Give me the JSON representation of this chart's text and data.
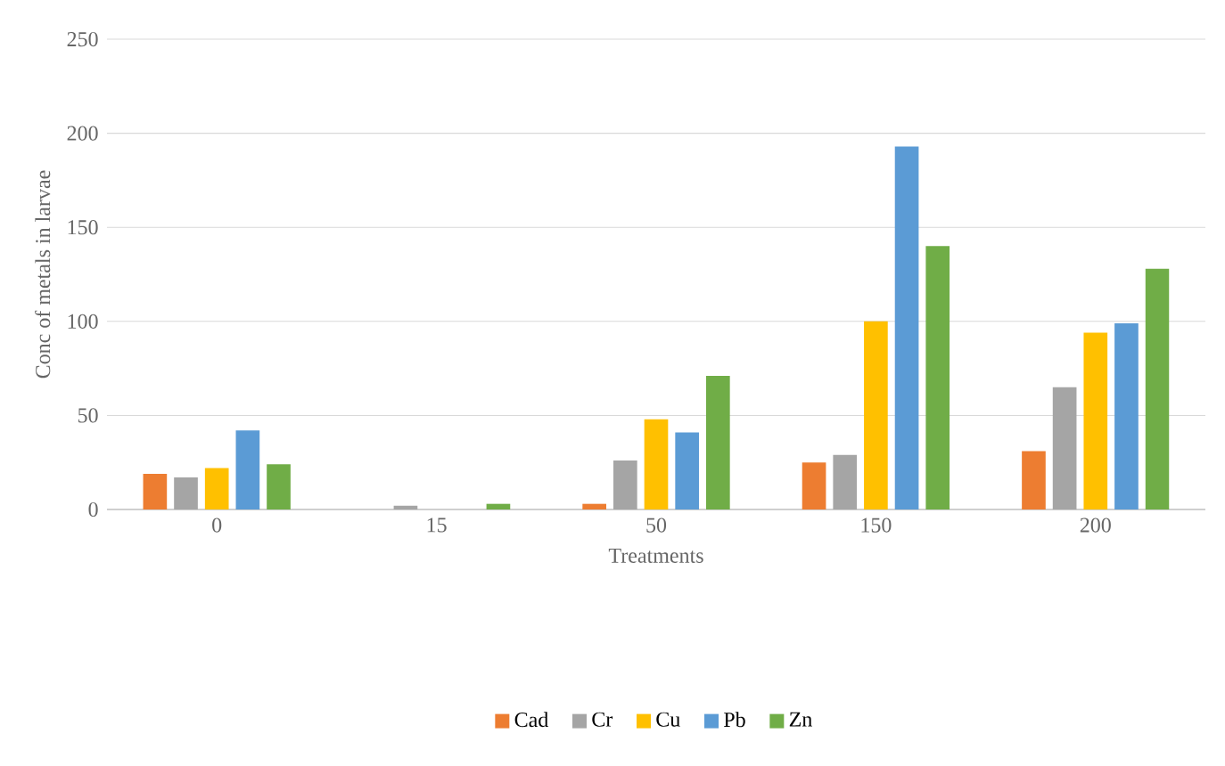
{
  "chart_data": {
    "type": "bar",
    "xlabel": "Treatments",
    "ylabel": "Conc of metals in larvae",
    "categories": [
      "0",
      "15",
      "50",
      "150",
      "200"
    ],
    "series": [
      {
        "name": "Cad",
        "color": "#ed7d31",
        "values": [
          19,
          0,
          3,
          25,
          31
        ]
      },
      {
        "name": "Cr",
        "color": "#a5a5a5",
        "values": [
          17,
          2,
          26,
          29,
          65
        ]
      },
      {
        "name": "Cu",
        "color": "#ffc000",
        "values": [
          22,
          0,
          48,
          100,
          94
        ]
      },
      {
        "name": "Pb",
        "color": "#5b9bd5",
        "values": [
          42,
          0,
          41,
          193,
          99
        ]
      },
      {
        "name": "Zn",
        "color": "#70ad47",
        "values": [
          24,
          3,
          71,
          140,
          128
        ]
      }
    ],
    "ylim": [
      0,
      250
    ],
    "yticks": [
      0,
      50,
      100,
      150,
      200,
      250
    ],
    "grid": "y",
    "legend": "bottom"
  }
}
